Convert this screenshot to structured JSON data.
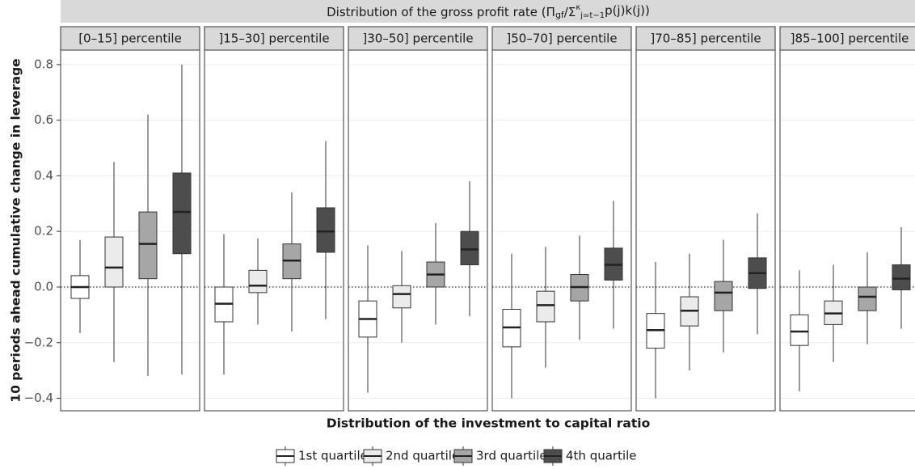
{
  "chart_data": {
    "type": "boxplot",
    "title": [
      "Distribution of the gross profit rate (Π",
      "gf",
      "/Σ",
      "κ",
      "j=t−1",
      "p(j)k(j))"
    ],
    "y_label": "10 periods ahead cumulative change in leverage",
    "x_label": "Distribution of the investment to capital ratio",
    "ylim": [
      -0.445,
      0.852
    ],
    "yticks": [
      {
        "value": -0.4,
        "label": "−0.4"
      },
      {
        "value": -0.2,
        "label": "−0.2"
      },
      {
        "value": 0,
        "label": "0.0"
      },
      0.2,
      0.4,
      0.6,
      0.8
    ],
    "hline": 0,
    "grid": true,
    "legend": "bottom",
    "series": [
      {
        "name": "1st quartile",
        "color": "#ffffff"
      },
      {
        "name": "2nd quartile",
        "color": "#ebebeb"
      },
      {
        "name": "3rd quartile",
        "color": "#a6a6a6"
      },
      {
        "name": "4th quartile",
        "color": "#4d4d4d"
      }
    ],
    "facets": [
      {
        "label": "[0–15] percentile",
        "boxes": [
          [
            -0.166,
            -0.041,
            0,
            0.041,
            0.169
          ],
          [
            -0.27,
            0,
            0.07,
            0.18,
            0.45
          ],
          [
            -0.32,
            0.03,
            0.155,
            0.27,
            0.62
          ],
          [
            -0.315,
            0.12,
            0.27,
            0.41,
            0.8
          ]
        ]
      },
      {
        "label": "]15–30] percentile",
        "boxes": [
          [
            -0.315,
            -0.125,
            -0.06,
            0,
            0.19
          ],
          [
            -0.135,
            -0.02,
            0.005,
            0.06,
            0.175
          ],
          [
            -0.16,
            0.03,
            0.095,
            0.155,
            0.34
          ],
          [
            -0.115,
            0.125,
            0.2,
            0.285,
            0.525
          ]
        ]
      },
      {
        "label": "]30–50] percentile",
        "boxes": [
          [
            -0.38,
            -0.18,
            -0.115,
            -0.05,
            0.15
          ],
          [
            -0.2,
            -0.075,
            -0.025,
            0.005,
            0.13
          ],
          [
            -0.135,
            0,
            0.045,
            0.09,
            0.23
          ],
          [
            -0.105,
            0.08,
            0.135,
            0.2,
            0.38
          ]
        ]
      },
      {
        "label": "]50–70] percentile",
        "boxes": [
          [
            -0.4,
            -0.215,
            -0.145,
            -0.08,
            0.12
          ],
          [
            -0.29,
            -0.125,
            -0.065,
            -0.015,
            0.145
          ],
          [
            -0.19,
            -0.05,
            0,
            0.045,
            0.185
          ],
          [
            -0.15,
            0.025,
            0.08,
            0.14,
            0.31
          ]
        ]
      },
      {
        "label": "]70–85] percentile",
        "boxes": [
          [
            -0.4,
            -0.22,
            -0.155,
            -0.095,
            0.09
          ],
          [
            -0.3,
            -0.14,
            -0.085,
            -0.035,
            0.12
          ],
          [
            -0.235,
            -0.085,
            -0.02,
            0.02,
            0.17
          ],
          [
            -0.17,
            -0.005,
            0.05,
            0.105,
            0.265
          ]
        ]
      },
      {
        "label": "]85–100] percentile",
        "boxes": [
          [
            -0.375,
            -0.21,
            -0.16,
            -0.1,
            0.06
          ],
          [
            -0.27,
            -0.135,
            -0.095,
            -0.05,
            0.08
          ],
          [
            -0.205,
            -0.085,
            -0.035,
            0,
            0.125
          ],
          [
            -0.15,
            -0.01,
            0.03,
            0.08,
            0.215
          ]
        ]
      }
    ]
  }
}
